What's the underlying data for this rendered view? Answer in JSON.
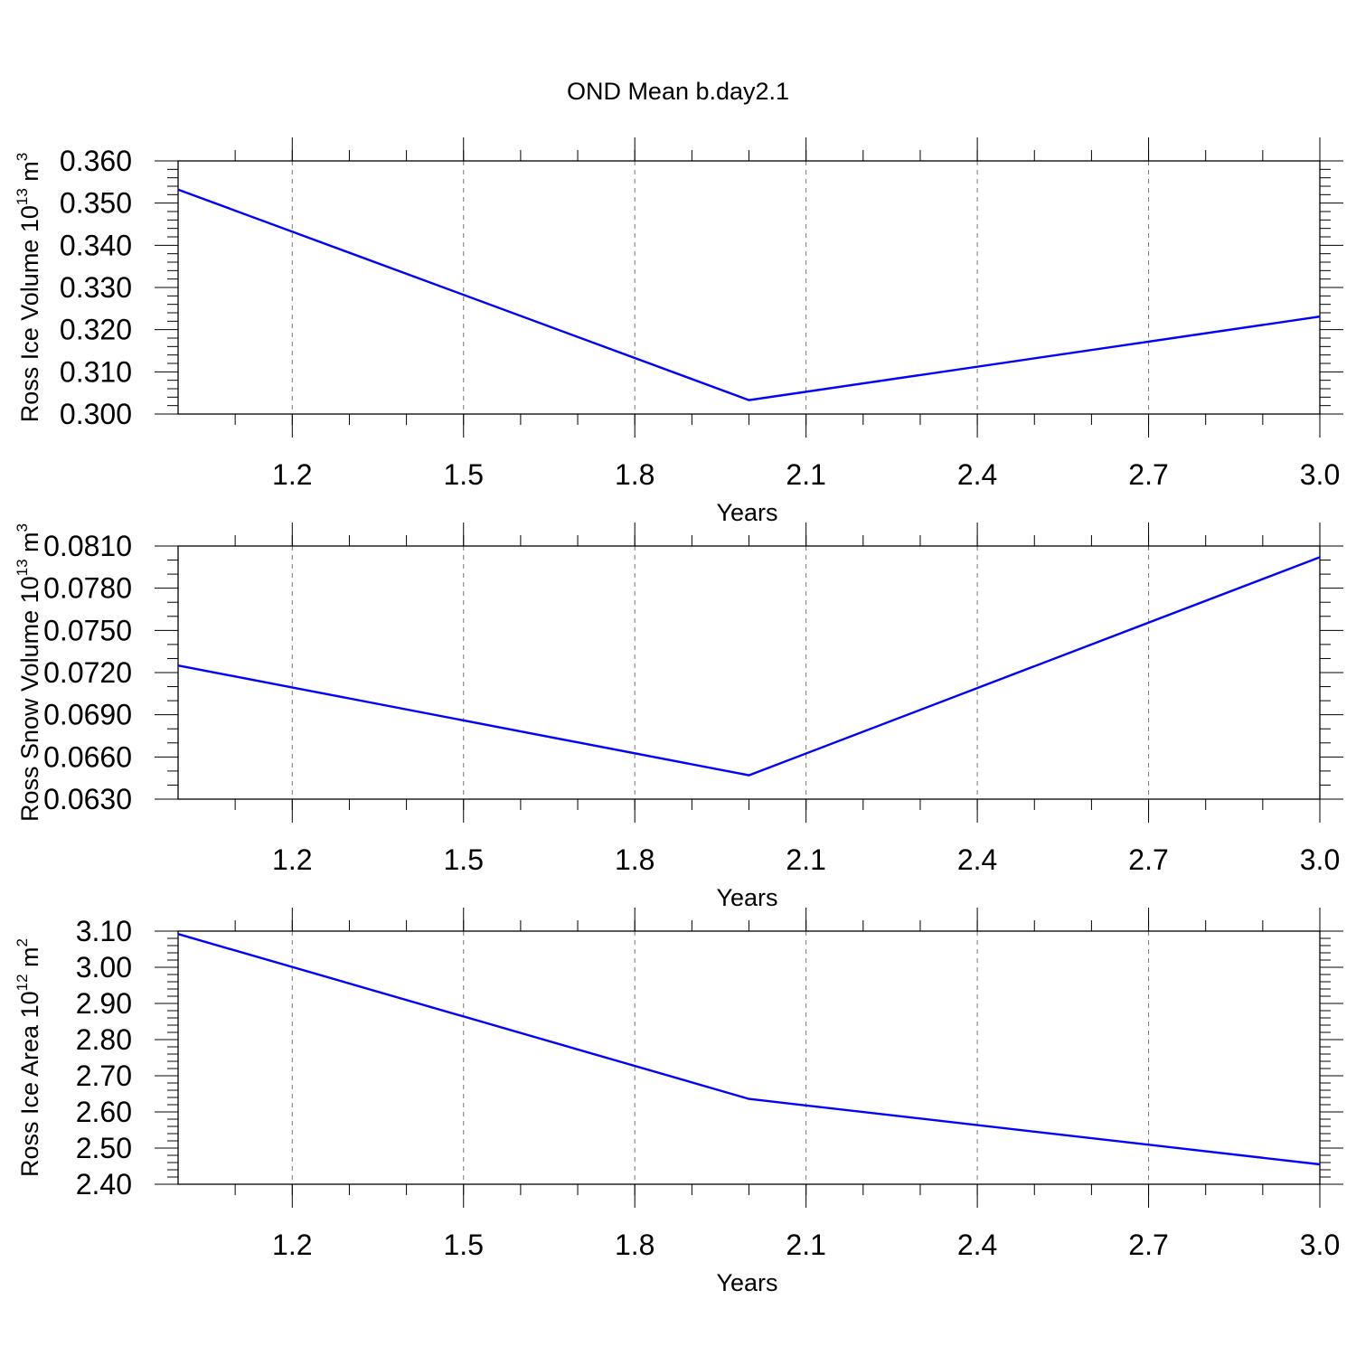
{
  "title": "OND Mean b.day2.1",
  "chart_data": [
    {
      "type": "line",
      "xlabel": "Years",
      "ylabel": "Ross Ice Volume 10",
      "ylabel_exp": "13",
      "ylabel_unit": " m",
      "ylabel_unit_exp": "3",
      "x": [
        1,
        2,
        3
      ],
      "xlim": [
        1,
        3
      ],
      "xticks": [
        "1.2",
        "1.5",
        "1.8",
        "2.1",
        "2.4",
        "2.7",
        "3.0"
      ],
      "ylim": [
        0.3,
        0.36
      ],
      "yticks": [
        "0.300",
        "0.310",
        "0.320",
        "0.330",
        "0.340",
        "0.350",
        "0.360"
      ],
      "ytick_step": 0.01,
      "ytick_minor": 5,
      "series": [
        {
          "values": [
            0.3532,
            0.3033,
            0.3231
          ],
          "color": "#0000ff"
        }
      ],
      "grid": "vertical-dashed"
    },
    {
      "type": "line",
      "xlabel": "Years",
      "ylabel": "Ross Snow Volume 10",
      "ylabel_exp": "13",
      "ylabel_unit": " m",
      "ylabel_unit_exp": "3",
      "x": [
        1,
        2,
        3
      ],
      "xlim": [
        1,
        3
      ],
      "xticks": [
        "1.2",
        "1.5",
        "1.8",
        "2.1",
        "2.4",
        "2.7",
        "3.0"
      ],
      "ylim": [
        0.063,
        0.081
      ],
      "yticks": [
        "0.0630",
        "0.0660",
        "0.0690",
        "0.0720",
        "0.0750",
        "0.0780",
        "0.0810"
      ],
      "ytick_step": 0.003,
      "ytick_minor": 3,
      "series": [
        {
          "values": [
            0.0725,
            0.0647,
            0.0802
          ],
          "color": "#0000ff"
        }
      ],
      "grid": "vertical-dashed"
    },
    {
      "type": "line",
      "xlabel": "Years",
      "ylabel": "Ross Ice Area 10",
      "ylabel_exp": "12",
      "ylabel_unit": " m",
      "ylabel_unit_exp": "2",
      "x": [
        1,
        2,
        3
      ],
      "xlim": [
        1,
        3
      ],
      "xticks": [
        "1.2",
        "1.5",
        "1.8",
        "2.1",
        "2.4",
        "2.7",
        "3.0"
      ],
      "ylim": [
        2.4,
        3.1
      ],
      "yticks": [
        "2.40",
        "2.50",
        "2.60",
        "2.70",
        "2.80",
        "2.90",
        "3.00",
        "3.10"
      ],
      "ytick_step": 0.1,
      "ytick_minor": 5,
      "series": [
        {
          "values": [
            3.092,
            2.636,
            2.455
          ],
          "color": "#0000ff"
        }
      ],
      "grid": "vertical-dashed"
    }
  ]
}
